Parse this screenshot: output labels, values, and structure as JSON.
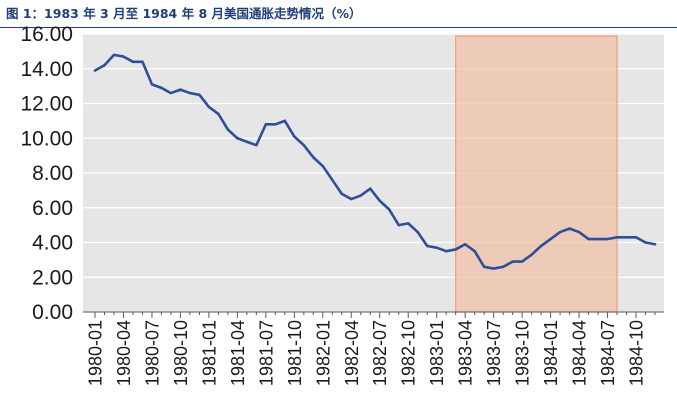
{
  "figure": {
    "title": "图 1：1983 年 3 月至 1984 年 8 月美国通胀走势情况（%）"
  },
  "chart_data": {
    "type": "line",
    "title": "",
    "xlabel": "",
    "ylabel": "",
    "ylim": [
      0,
      16
    ],
    "yticks": [
      "0.00",
      "2.00",
      "4.00",
      "6.00",
      "8.00",
      "10.00",
      "12.00",
      "14.00",
      "16.00"
    ],
    "grid": true,
    "legend": "none",
    "x_ticks": [
      "1980-01",
      "1980-04",
      "1980-07",
      "1980-10",
      "1981-01",
      "1981-04",
      "1981-07",
      "1981-10",
      "1982-01",
      "1982-04",
      "1982-07",
      "1982-10",
      "1983-01",
      "1983-04",
      "1983-07",
      "1983-10",
      "1984-01",
      "1984-04",
      "1984-07",
      "1984-10"
    ],
    "x": [
      "1980-01",
      "1980-02",
      "1980-03",
      "1980-04",
      "1980-05",
      "1980-06",
      "1980-07",
      "1980-08",
      "1980-09",
      "1980-10",
      "1980-11",
      "1980-12",
      "1981-01",
      "1981-02",
      "1981-03",
      "1981-04",
      "1981-05",
      "1981-06",
      "1981-07",
      "1981-08",
      "1981-09",
      "1981-10",
      "1981-11",
      "1981-12",
      "1982-01",
      "1982-02",
      "1982-03",
      "1982-04",
      "1982-05",
      "1982-06",
      "1982-07",
      "1982-08",
      "1982-09",
      "1982-10",
      "1982-11",
      "1982-12",
      "1983-01",
      "1983-02",
      "1983-03",
      "1983-04",
      "1983-05",
      "1983-06",
      "1983-07",
      "1983-08",
      "1983-09",
      "1983-10",
      "1983-11",
      "1983-12",
      "1984-01",
      "1984-02",
      "1984-03",
      "1984-04",
      "1984-05",
      "1984-06",
      "1984-07",
      "1984-08",
      "1984-09",
      "1984-10",
      "1984-11",
      "1984-12"
    ],
    "series": [
      {
        "name": "",
        "color": "#2e4f9a",
        "values": [
          13.9,
          14.2,
          14.8,
          14.7,
          14.4,
          14.4,
          13.1,
          12.9,
          12.6,
          12.8,
          12.6,
          12.5,
          11.8,
          11.4,
          10.5,
          10.0,
          9.8,
          9.6,
          10.8,
          10.8,
          11.0,
          10.1,
          9.6,
          8.9,
          8.4,
          7.6,
          6.8,
          6.5,
          6.7,
          7.1,
          6.4,
          5.9,
          5.0,
          5.1,
          4.6,
          3.8,
          3.7,
          3.5,
          3.6,
          3.9,
          3.5,
          2.6,
          2.5,
          2.6,
          2.9,
          2.9,
          3.3,
          3.8,
          4.2,
          4.6,
          4.8,
          4.6,
          4.2,
          4.2,
          4.2,
          4.3,
          4.3,
          4.3,
          4.0,
          3.9
        ]
      }
    ],
    "highlight": {
      "x_start": "1983-03",
      "x_end": "1984-08",
      "fill": "#f0c2a8",
      "stroke": "#f0a070"
    },
    "colors": {
      "plot_background": "#e6e6e6",
      "gridline": "#ffffff",
      "line": "#2e4f9a",
      "title": "#1f3f7a"
    }
  }
}
